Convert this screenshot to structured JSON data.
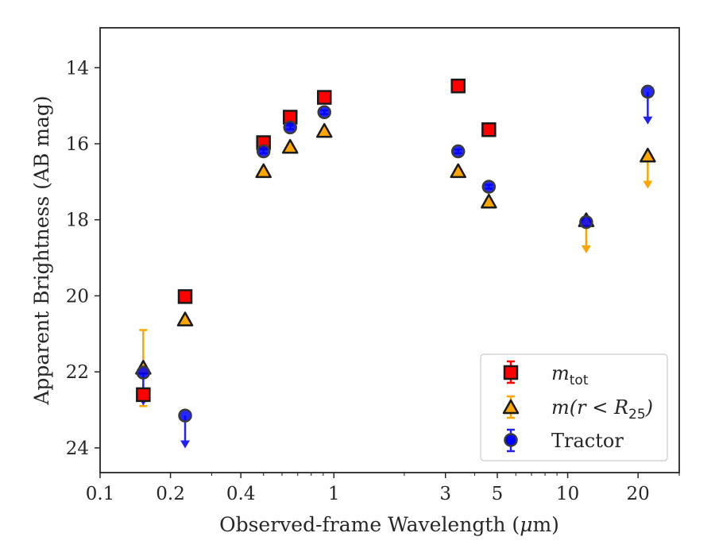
{
  "chart_data": {
    "type": "scatter",
    "xlabel_prefix": "Observed-frame Wavelength (",
    "xlabel_mu": "μ",
    "xlabel_suffix": "m)",
    "ylabel": "Apparent Brightness (AB mag)",
    "x_scale": "log",
    "xlim": [
      0.1,
      30
    ],
    "ylim": [
      24.65,
      12.95
    ],
    "y_inverted": true,
    "x_ticks": [
      {
        "value": 0.1,
        "label": "0.1"
      },
      {
        "value": 0.2,
        "label": "0.2"
      },
      {
        "value": 0.4,
        "label": "0.4"
      },
      {
        "value": 1,
        "label": "1"
      },
      {
        "value": 3,
        "label": "3"
      },
      {
        "value": 5,
        "label": "5"
      },
      {
        "value": 10,
        "label": "10"
      },
      {
        "value": 20,
        "label": "20"
      }
    ],
    "y_ticks": [
      {
        "value": 14,
        "label": "14"
      },
      {
        "value": 16,
        "label": "16"
      },
      {
        "value": 18,
        "label": "18"
      },
      {
        "value": 20,
        "label": "20"
      },
      {
        "value": 22,
        "label": "22"
      },
      {
        "value": 24,
        "label": "24"
      }
    ],
    "legend": {
      "placement": "lower-right",
      "entries": [
        {
          "series": "m_tot",
          "label": "m",
          "sub": "tot"
        },
        {
          "series": "m_r25",
          "label_parts": [
            "m(r < R",
            "25",
            ")"
          ]
        },
        {
          "series": "tractor",
          "label": "Tractor"
        }
      ]
    },
    "series": [
      {
        "name": "m_tot",
        "marker": "square",
        "color": "#ff0000",
        "edge_color": "#1a1a1a",
        "points": [
          {
            "x": 0.153,
            "y": 22.6,
            "yerr": 0.1
          },
          {
            "x": 0.231,
            "y": 20.02,
            "yerr": 0.05
          },
          {
            "x": 0.5,
            "y": 15.97,
            "yerr": 0.05
          },
          {
            "x": 0.65,
            "y": 15.3,
            "yerr": 0.05
          },
          {
            "x": 0.91,
            "y": 14.78,
            "yerr": 0.05
          },
          {
            "x": 3.4,
            "y": 14.48,
            "yerr": 0.05
          },
          {
            "x": 4.6,
            "y": 15.63,
            "yerr": 0.05
          }
        ]
      },
      {
        "name": "m_r25",
        "marker": "triangle",
        "color": "#ffa500",
        "edge_color": "#1a1a1a",
        "points": [
          {
            "x": 0.153,
            "y": 21.9,
            "yerr_low": 1.0,
            "yerr_high": 1.0
          },
          {
            "x": 0.231,
            "y": 20.63,
            "yerr": 0.05
          },
          {
            "x": 0.5,
            "y": 16.73,
            "yerr": 0.05
          },
          {
            "x": 0.65,
            "y": 16.09,
            "yerr": 0.05
          },
          {
            "x": 0.91,
            "y": 15.67,
            "yerr": 0.05
          },
          {
            "x": 3.4,
            "y": 16.73,
            "yerr": 0.05
          },
          {
            "x": 4.6,
            "y": 17.53,
            "yerr": 0.05
          },
          {
            "x": 12,
            "y": 18.02,
            "upper_limit": true
          },
          {
            "x": 22,
            "y": 16.32,
            "upper_limit": true
          }
        ]
      },
      {
        "name": "tractor",
        "marker": "circle",
        "color": "#0000ff",
        "edge_color": "#3a3a3a",
        "points": [
          {
            "x": 0.153,
            "y": 22.02,
            "upper_limit": true
          },
          {
            "x": 0.231,
            "y": 23.15,
            "upper_limit": true
          },
          {
            "x": 0.5,
            "y": 16.2,
            "yerr": 0.05
          },
          {
            "x": 0.65,
            "y": 15.57,
            "yerr": 0.05
          },
          {
            "x": 0.91,
            "y": 15.17,
            "yerr": 0.05
          },
          {
            "x": 3.4,
            "y": 16.2,
            "yerr": 0.05
          },
          {
            "x": 4.6,
            "y": 17.13,
            "yerr": 0.05
          },
          {
            "x": 12,
            "y": 18.06,
            "yerr": 0.05
          },
          {
            "x": 22,
            "y": 14.63,
            "upper_limit": true
          }
        ]
      }
    ]
  }
}
